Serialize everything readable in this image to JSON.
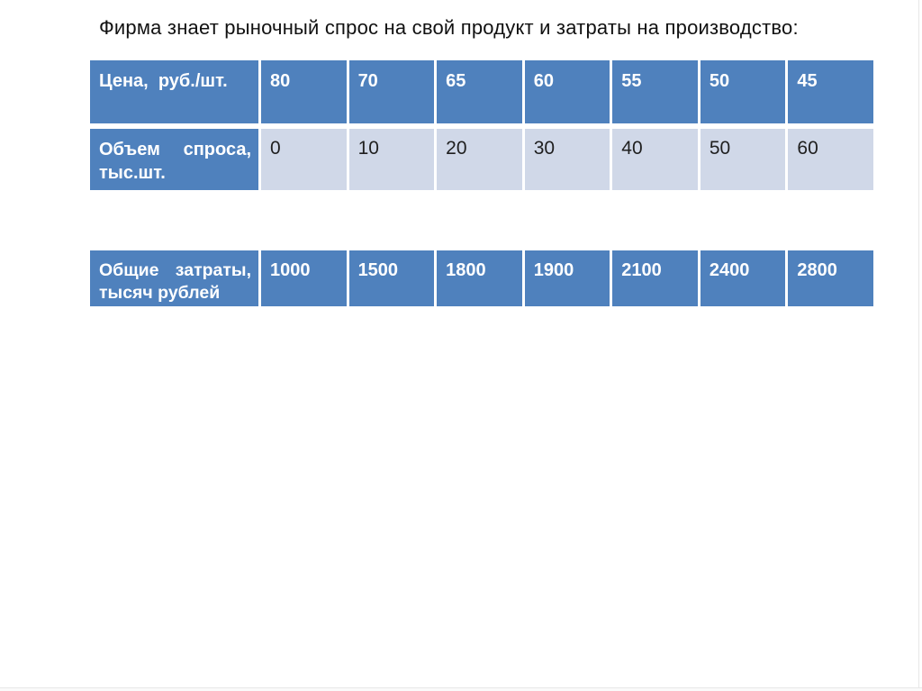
{
  "title": "Фирма знает рыночный спрос на свой продукт и затраты на производство:",
  "colors": {
    "header_blue": "#4F81BD",
    "band_light": "#D0D8E8",
    "text_dark": "#1f1f1f"
  },
  "demand_table": {
    "rows": [
      {
        "label": "Цена,  руб./шт.",
        "values": [
          "80",
          "70",
          "65",
          "60",
          "55",
          "50",
          "45"
        ]
      },
      {
        "label": "Объем спроса, тыс.шт.",
        "values": [
          "0",
          "10",
          "20",
          "30",
          "40",
          "50",
          "60"
        ]
      }
    ]
  },
  "cost_table": {
    "rows": [
      {
        "label": "Общие затраты, тысяч рублей",
        "values": [
          "1000",
          "1500",
          "1800",
          "1900",
          "2100",
          "2400",
          "2800"
        ]
      }
    ]
  },
  "chart_data": {
    "type": "table",
    "title": "Фирма знает рыночный спрос на свой продукт и затраты на производство:",
    "rows": [
      {
        "name": "Цена, руб./шт.",
        "values": [
          80,
          70,
          65,
          60,
          55,
          50,
          45
        ]
      },
      {
        "name": "Объем спроса, тыс.шт.",
        "values": [
          0,
          10,
          20,
          30,
          40,
          50,
          60
        ]
      },
      {
        "name": "Общие затраты, тысяч рублей",
        "values": [
          1000,
          1500,
          1800,
          1900,
          2100,
          2400,
          2800
        ]
      }
    ]
  }
}
